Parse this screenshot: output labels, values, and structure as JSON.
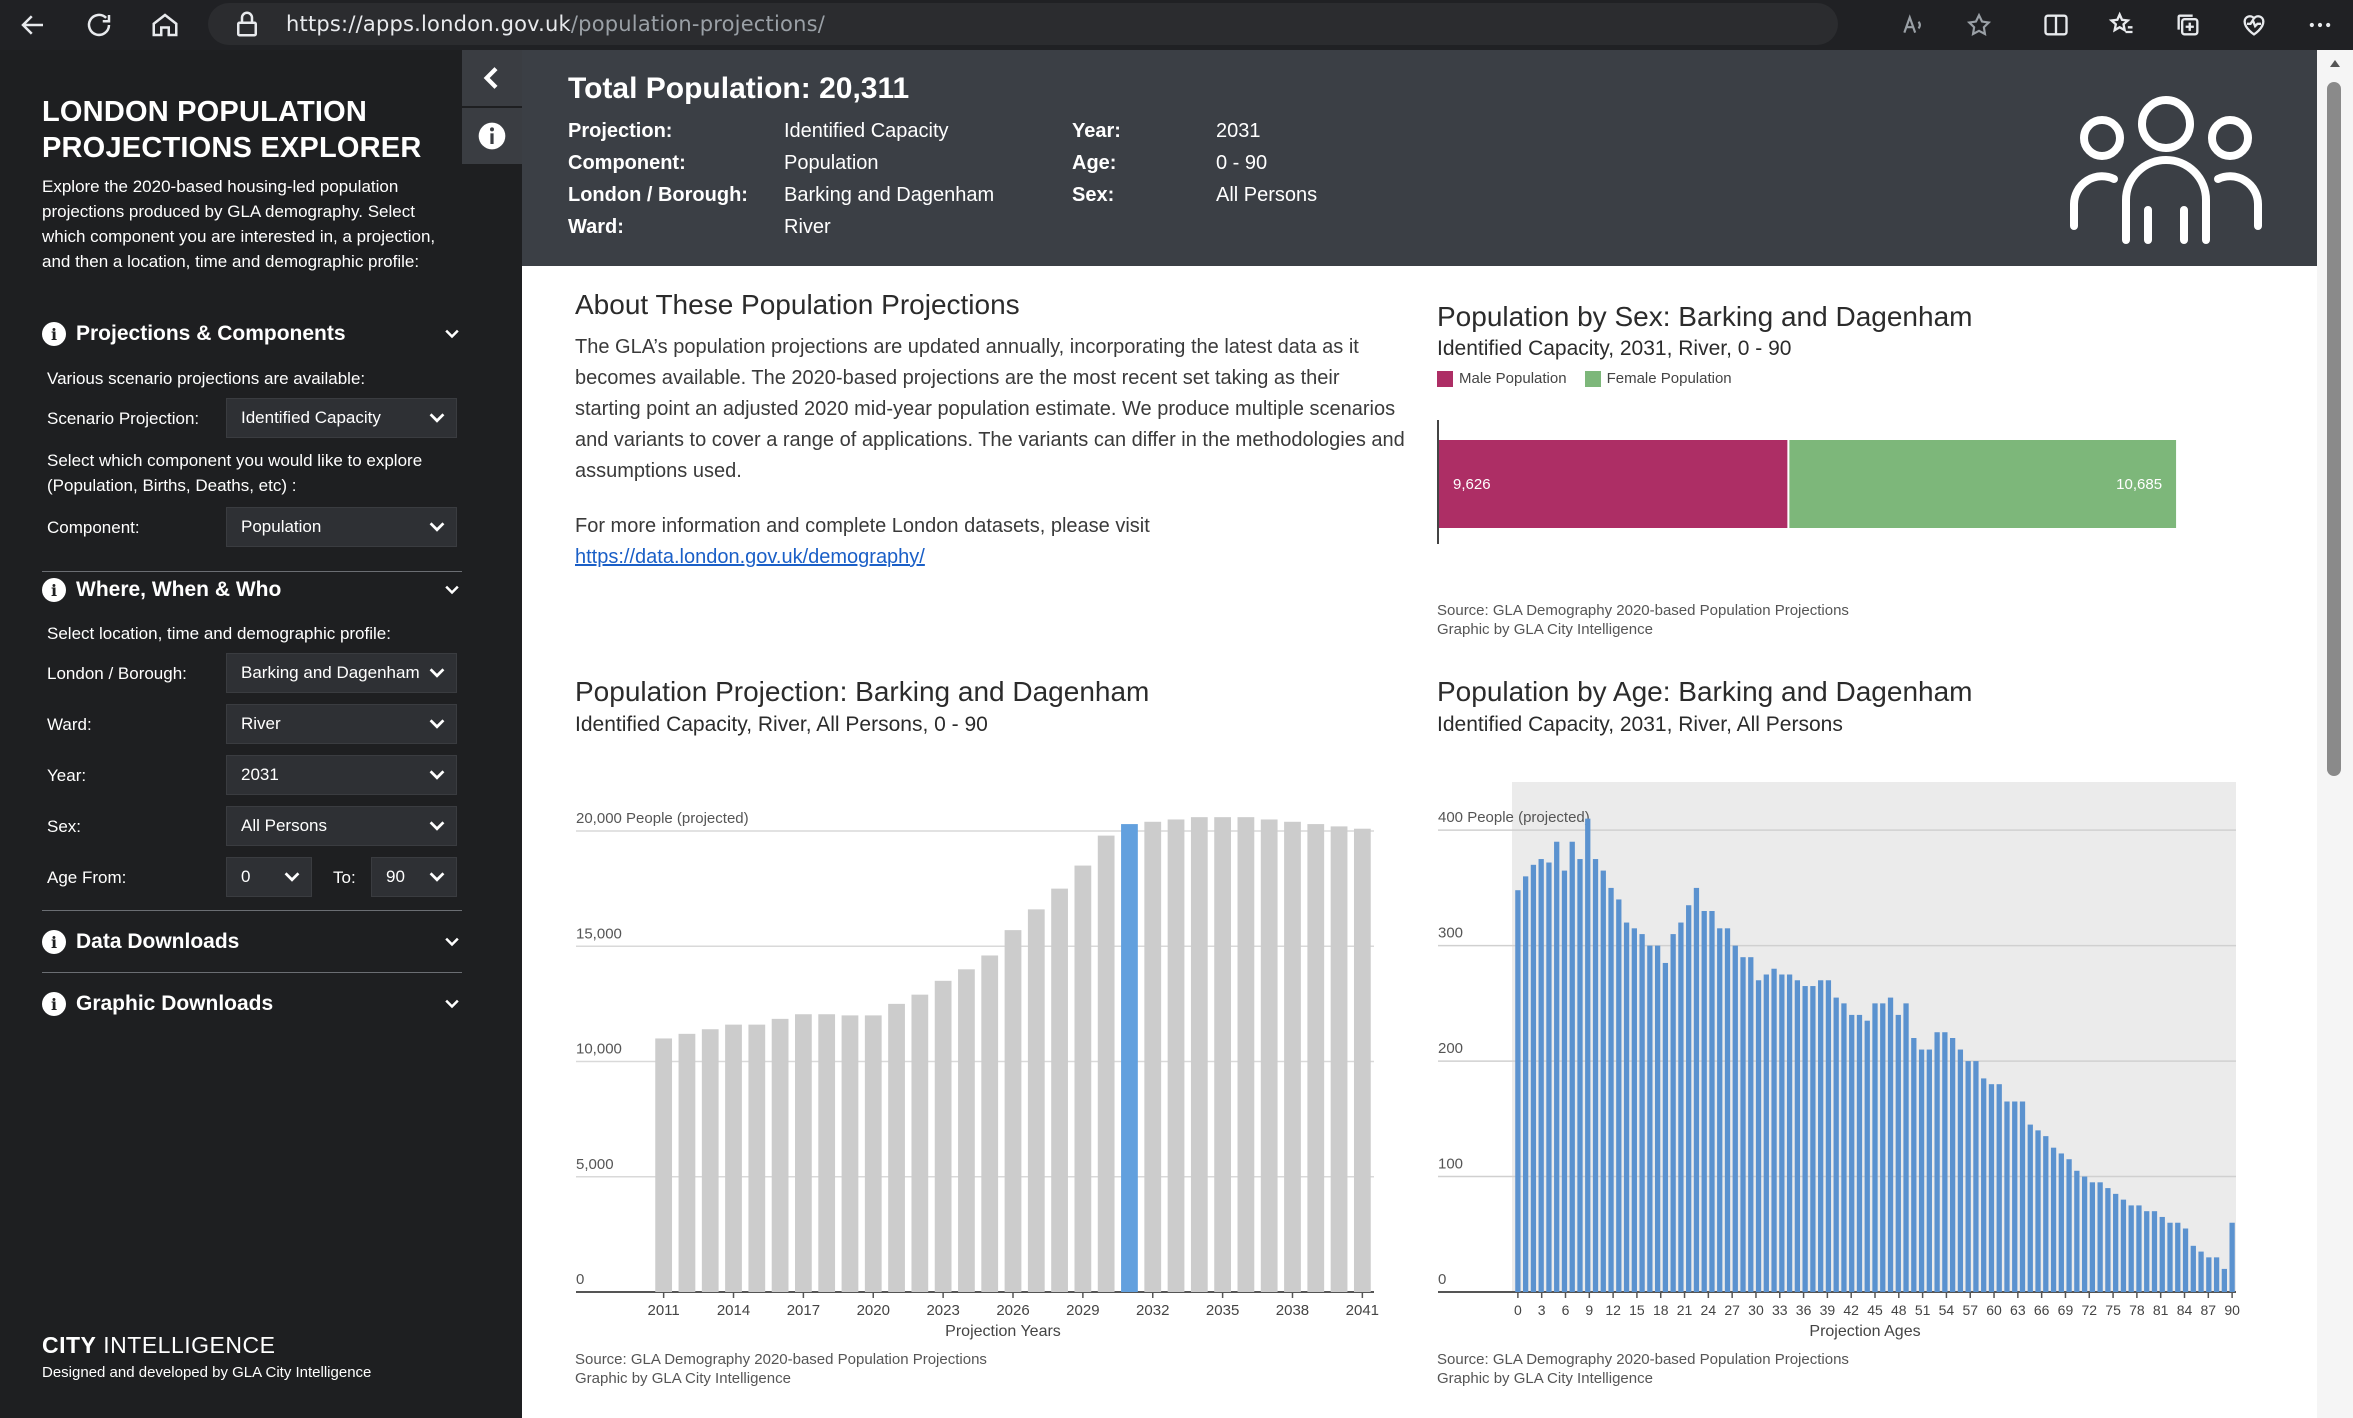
{
  "browser": {
    "url_host": "https://apps.london.gov.uk",
    "url_path": "/population-projections/"
  },
  "sidebar": {
    "title": "LONDON POPULATION PROJECTIONS EXPLORER",
    "intro": "Explore the 2020-based housing-led population projections produced by GLA demography. Select which component you are interested in, a projection, and then a location, time and demographic profile:",
    "sections": {
      "projections": "Projections & Components",
      "where": "Where, When & Who",
      "data_downloads": "Data Downloads",
      "graphic_downloads": "Graphic Downloads"
    },
    "scenario_note": "Various scenario projections are available:",
    "scenario_label": "Scenario Projection:",
    "scenario_value": "Identified Capacity",
    "component_note": "Select which component you would like to explore (Population, Births, Deaths, etc) :",
    "component_label": "Component:",
    "component_value": "Population",
    "location_note": "Select location, time and demographic profile:",
    "borough_label": "London / Borough:",
    "borough_value": "Barking and Dagenham",
    "ward_label": "Ward:",
    "ward_value": "River",
    "year_label": "Year:",
    "year_value": "2031",
    "sex_label": "Sex:",
    "sex_value": "All Persons",
    "age_from_label": "Age From:",
    "age_from_value": "0",
    "age_to_label": "To:",
    "age_to_value": "90",
    "brand_bold": "CITY",
    "brand_rest": " INTELLIGENCE",
    "credit": "Designed and developed by GLA City Intelligence"
  },
  "header": {
    "total": "Total Population: 20,311",
    "projection_label": "Projection:",
    "projection_value": "Identified Capacity",
    "component_label": "Component:",
    "component_value": "Population",
    "borough_label": "London / Borough:",
    "borough_value": "Barking and Dagenham",
    "ward_label": "Ward:",
    "ward_value": "River",
    "year_label": "Year:",
    "year_value": "2031",
    "age_label": "Age:",
    "age_value": "0 - 90",
    "sex_label": "Sex:",
    "sex_value": "All Persons"
  },
  "about": {
    "title": "About These Population Projections",
    "para1": "The GLA’s population projections are updated annually, incorporating the latest data as it becomes available. The 2020-based projections are the most recent set taking as their starting point an adjusted 2020 mid-year population estimate. We produce multiple scenarios and variants to cover a range of applications. The variants can differ in the methodologies and assumptions used.",
    "para2": "For more information and complete London datasets, please visit",
    "link": "https://data.london.gov.uk/demography/"
  },
  "sources": {
    "line1": "Source: GLA Demography 2020-based Population Projections",
    "line2": "Graphic by GLA City Intelligence"
  },
  "colors": {
    "male": "#ad2e65",
    "female": "#7db77a",
    "bar_grey": "#cccccc",
    "bar_highlight": "#62a0de",
    "age_bar": "#5b92cf"
  },
  "chart_data": [
    {
      "type": "bar",
      "orientation": "horizontal-stacked",
      "title": "Population by Sex: Barking and Dagenham",
      "subtitle": "Identified Capacity, 2031, River, 0 - 90",
      "series": [
        {
          "name": "Male Population",
          "values": [
            9626
          ],
          "label": "9,626"
        },
        {
          "name": "Female Population",
          "values": [
            10685
          ],
          "label": "10,685"
        }
      ],
      "xlim": [
        0,
        21000
      ],
      "legend": "top-left"
    },
    {
      "type": "bar",
      "title": "Population Projection: Barking and Dagenham",
      "subtitle": "Identified Capacity, River, All Persons, 0 - 90",
      "xlabel": "Projection Years",
      "ylabel_inline": "People (projected)",
      "y_ticks": [
        "0",
        "5,000",
        "10,000",
        "15,000",
        "20,000"
      ],
      "x_ticks": [
        "2011",
        "2014",
        "2017",
        "2020",
        "2023",
        "2026",
        "2029",
        "2032",
        "2035",
        "2038",
        "2041"
      ],
      "highlight": 2031,
      "ylim": [
        0,
        20000
      ],
      "x": [
        2011,
        2012,
        2013,
        2014,
        2015,
        2016,
        2017,
        2018,
        2019,
        2020,
        2021,
        2022,
        2023,
        2024,
        2025,
        2026,
        2027,
        2028,
        2029,
        2030,
        2031,
        2032,
        2033,
        2034,
        2035,
        2036,
        2037,
        2038,
        2039,
        2040,
        2041
      ],
      "values": [
        11000,
        11200,
        11400,
        11600,
        11600,
        11850,
        12050,
        12050,
        12000,
        12000,
        12500,
        12900,
        13500,
        14000,
        14600,
        15700,
        16600,
        17500,
        18500,
        19800,
        20300,
        20400,
        20500,
        20600,
        20600,
        20600,
        20500,
        20400,
        20300,
        20200,
        20100
      ]
    },
    {
      "type": "bar",
      "title": "Population by Age: Barking and Dagenham",
      "subtitle": "Identified Capacity, 2031, River, All Persons",
      "xlabel": "Projection Ages",
      "ylabel_inline": "People (projected)",
      "y_ticks": [
        "0",
        "100",
        "200",
        "300",
        "400"
      ],
      "x_ticks": [
        "0",
        "3",
        "6",
        "9",
        "12",
        "15",
        "18",
        "21",
        "24",
        "27",
        "30",
        "33",
        "36",
        "39",
        "42",
        "45",
        "48",
        "51",
        "54",
        "57",
        "60",
        "63",
        "66",
        "69",
        "72",
        "75",
        "78",
        "81",
        "84",
        "87",
        "90"
      ],
      "ylim": [
        0,
        440
      ],
      "x_range": [
        0,
        90
      ],
      "values": [
        348,
        360,
        370,
        375,
        372,
        390,
        365,
        390,
        375,
        410,
        375,
        365,
        350,
        340,
        320,
        315,
        310,
        300,
        300,
        285,
        310,
        320,
        335,
        350,
        330,
        330,
        315,
        315,
        300,
        290,
        290,
        270,
        275,
        280,
        275,
        275,
        270,
        265,
        265,
        270,
        270,
        255,
        250,
        240,
        240,
        235,
        250,
        250,
        255,
        240,
        250,
        220,
        210,
        210,
        225,
        225,
        220,
        210,
        200,
        200,
        185,
        180,
        180,
        165,
        165,
        165,
        145,
        140,
        135,
        125,
        120,
        115,
        105,
        100,
        95,
        95,
        90,
        85,
        80,
        75,
        75,
        70,
        70,
        65,
        60,
        60,
        55,
        40,
        35,
        30,
        30,
        20,
        60
      ]
    }
  ]
}
